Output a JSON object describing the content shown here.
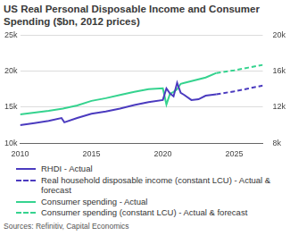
{
  "chart_data": {
    "type": "line",
    "title": "US Real Personal Disposable Income and Consumer Spending ($bn, 2012 prices)",
    "source": "Sources: Refinitiv, Capital Economics",
    "xlim": [
      2010,
      2027
    ],
    "xticks": [
      2010,
      2015,
      2020,
      2025
    ],
    "ylim": [
      10000,
      25000
    ],
    "yticks": [
      {
        "value": 10000,
        "label": "10k"
      },
      {
        "value": 15000,
        "label": "15k"
      },
      {
        "value": 20000,
        "label": "20k"
      },
      {
        "value": 25000,
        "label": "25k"
      }
    ],
    "y2lim": [
      8000,
      20000
    ],
    "y2ticks": [
      {
        "value": 8000,
        "label": "8k"
      },
      {
        "value": 12000,
        "label": "12k"
      },
      {
        "value": 16000,
        "label": "16k"
      },
      {
        "value": 20000,
        "label": "20k"
      }
    ],
    "grid": true,
    "legend": "bottom",
    "series": [
      {
        "name": "RHDI - Actual",
        "color": "#4b3bbf",
        "line_style": "solid",
        "x": [
          2010,
          2011,
          2012,
          2012.9,
          2013.1,
          2014,
          2015,
          2016,
          2017,
          2018,
          2019,
          2020,
          2020.25,
          2020.5,
          2020.75,
          2021,
          2021.25,
          2021.5,
          2022,
          2022.5,
          2023,
          2023.75
        ],
        "values": [
          12500,
          12800,
          13100,
          13500,
          12900,
          13500,
          14100,
          14400,
          14800,
          15300,
          15700,
          16000,
          17600,
          16900,
          16500,
          18400,
          17000,
          16700,
          16000,
          16100,
          16600,
          16800
        ]
      },
      {
        "name": "Real household disposable income (constant LCU) - Actual & forecast",
        "color": "#4b3bbf",
        "line_style": "dashed",
        "x": [
          2023.75,
          2025,
          2026,
          2027
        ],
        "values": [
          16800,
          17200,
          17600,
          18000
        ]
      },
      {
        "name": "Consumer spending - Actual",
        "color": "#35d38f",
        "line_style": "solid",
        "axis": "y2",
        "x": [
          2010,
          2011,
          2012,
          2013,
          2014,
          2015,
          2016,
          2017,
          2018,
          2019,
          2020,
          2020.25,
          2020.5,
          2020.75,
          2021,
          2021.25,
          2021.5,
          2022,
          2023,
          2023.75
        ],
        "values": [
          11200,
          11400,
          11600,
          11850,
          12200,
          12700,
          13000,
          13350,
          13700,
          14000,
          14100,
          12300,
          13500,
          13700,
          14000,
          14600,
          14700,
          14900,
          15300,
          15800
        ]
      },
      {
        "name": "Consumer spending (constant LCU) - Actual & forecast",
        "color": "#35d38f",
        "line_style": "dashed",
        "axis": "y2",
        "x": [
          2023.75,
          2025,
          2026,
          2027
        ],
        "values": [
          15800,
          16100,
          16400,
          16700
        ]
      }
    ]
  }
}
